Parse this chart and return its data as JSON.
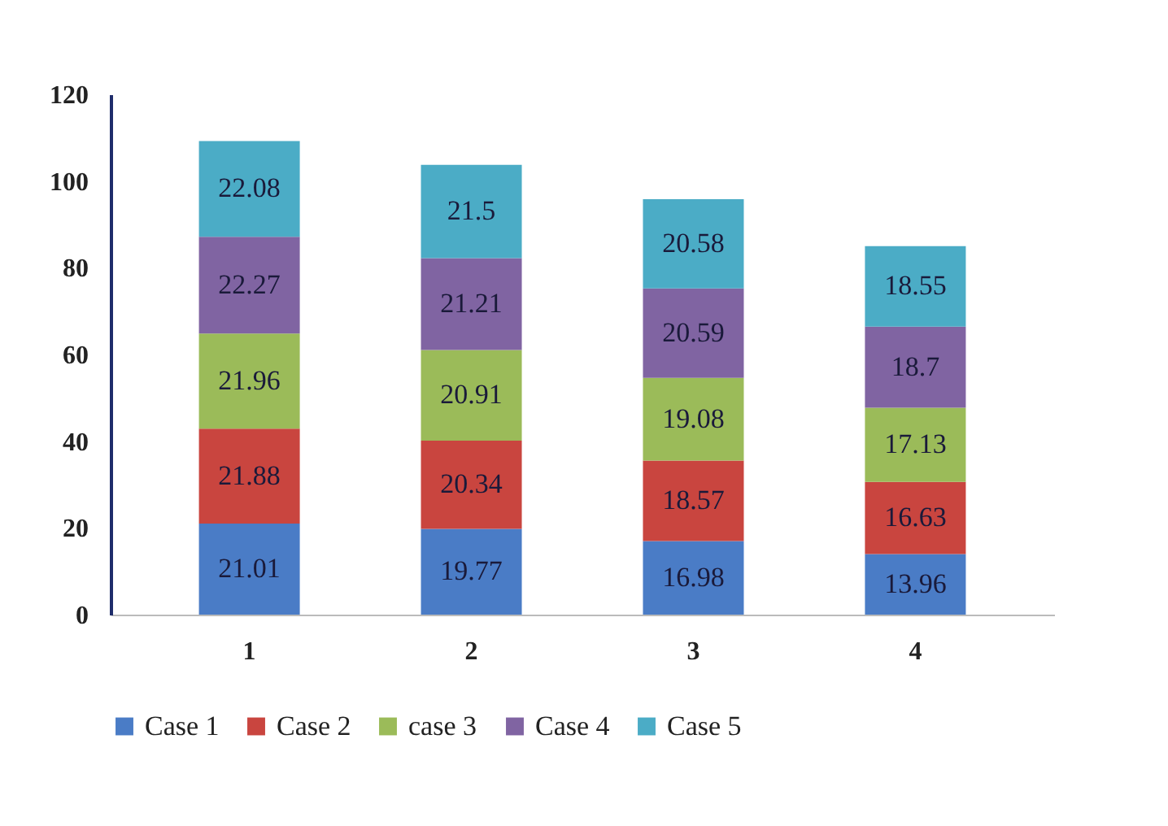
{
  "chart_data": {
    "type": "bar",
    "stacked": true,
    "data_labels": true,
    "categories": [
      "1",
      "2",
      "3",
      "4"
    ],
    "series": [
      {
        "name": "Case 1",
        "color": "#4a7cc6",
        "values": [
          21.01,
          19.77,
          16.98,
          13.96
        ]
      },
      {
        "name": "Case 2",
        "color": "#c9453f",
        "values": [
          21.88,
          20.34,
          18.57,
          16.63
        ]
      },
      {
        "name": "case 3",
        "color": "#9bbb59",
        "values": [
          21.96,
          20.91,
          19.08,
          17.13
        ]
      },
      {
        "name": "Case 4",
        "color": "#8064a2",
        "values": [
          22.27,
          21.21,
          20.59,
          18.7
        ]
      },
      {
        "name": "Case 5",
        "color": "#4bacc6",
        "values": [
          22.08,
          21.5,
          20.58,
          18.55
        ]
      }
    ],
    "ylim": [
      0,
      120
    ],
    "yticks": [
      0,
      20,
      40,
      60,
      80,
      100,
      120
    ],
    "grid": false,
    "legend": "bottom"
  }
}
